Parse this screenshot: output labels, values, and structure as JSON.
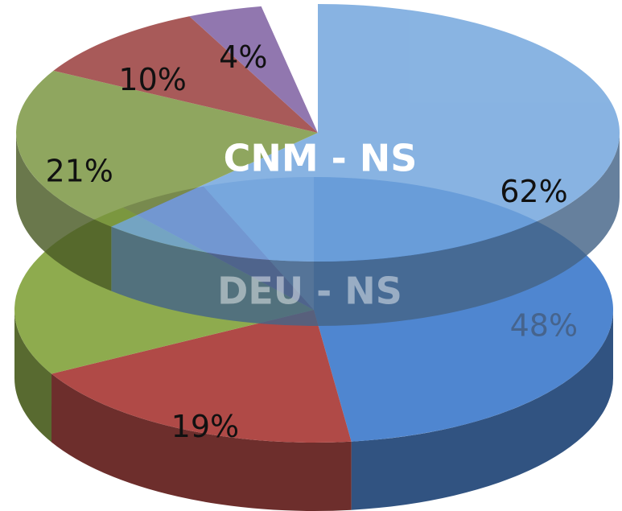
{
  "chart_data": [
    {
      "type": "pie3d",
      "title": "DEU - NS",
      "categories": null,
      "values": [
        48,
        19,
        22,
        5,
        6
      ],
      "value_labels": [
        "48%",
        "19%",
        null,
        null,
        null
      ],
      "colors": [
        "#4f86d0",
        "#b04a47",
        "#8eab4e",
        "#8064a2",
        "#9fbbe4"
      ]
    },
    {
      "type": "pie3d",
      "title": "CNM - NS",
      "categories": null,
      "values": [
        62,
        21,
        10,
        4,
        3
      ],
      "value_labels": [
        "62%",
        "21%",
        "10%",
        "4%",
        null
      ],
      "colors": [
        "#6fa3dc",
        "#77933c",
        "#953735",
        "#7a5a9e",
        "#ffffff"
      ]
    }
  ]
}
